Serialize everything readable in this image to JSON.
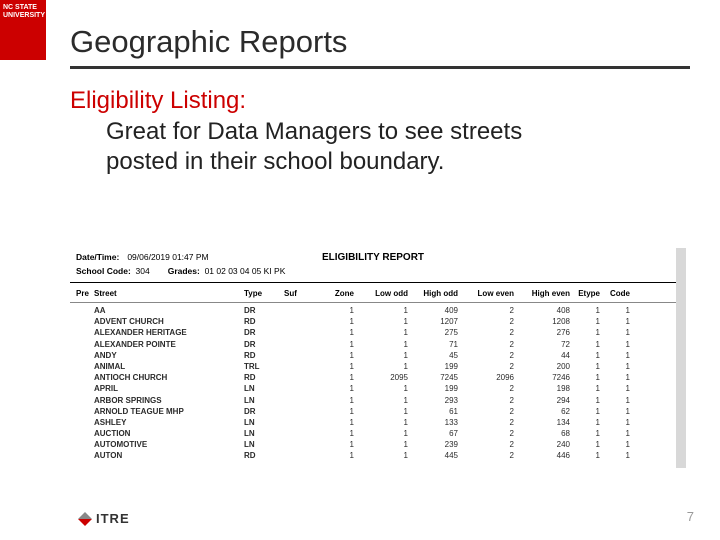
{
  "brand": {
    "line1": "NC STATE",
    "line2": "UNIVERSITY"
  },
  "title": "Geographic Reports",
  "subtitle": "Eligibility Listing:",
  "description": "Great for Data Managers to see streets posted in their school boundary.",
  "report": {
    "datetime_label": "Date/Time:",
    "datetime_value": "09/06/2019 01:47 PM",
    "title": "ELIGIBILITY REPORT",
    "school_label": "School Code:",
    "school_value": "304",
    "grades_label": "Grades:",
    "grades_value": "01 02 03 04 05 KI PK",
    "columns": [
      "Pre",
      "Street",
      "Type",
      "Suf",
      "Zone",
      "Low odd",
      "High odd",
      "Low even",
      "High even",
      "Etype",
      "Code"
    ],
    "rows": [
      {
        "pre": "",
        "street": "AA",
        "type": "DR",
        "suf": "",
        "zone": "1",
        "lo": "1",
        "ho": "409",
        "le": "2",
        "he": "408",
        "et": "1",
        "code": "1"
      },
      {
        "pre": "",
        "street": "ADVENT CHURCH",
        "type": "RD",
        "suf": "",
        "zone": "1",
        "lo": "1",
        "ho": "1207",
        "le": "2",
        "he": "1208",
        "et": "1",
        "code": "1"
      },
      {
        "pre": "",
        "street": "ALEXANDER HERITAGE",
        "type": "DR",
        "suf": "",
        "zone": "1",
        "lo": "1",
        "ho": "275",
        "le": "2",
        "he": "276",
        "et": "1",
        "code": "1"
      },
      {
        "pre": "",
        "street": "ALEXANDER POINTE",
        "type": "DR",
        "suf": "",
        "zone": "1",
        "lo": "1",
        "ho": "71",
        "le": "2",
        "he": "72",
        "et": "1",
        "code": "1"
      },
      {
        "pre": "",
        "street": "ANDY",
        "type": "RD",
        "suf": "",
        "zone": "1",
        "lo": "1",
        "ho": "45",
        "le": "2",
        "he": "44",
        "et": "1",
        "code": "1"
      },
      {
        "pre": "",
        "street": "ANIMAL",
        "type": "TRL",
        "suf": "",
        "zone": "1",
        "lo": "1",
        "ho": "199",
        "le": "2",
        "he": "200",
        "et": "1",
        "code": "1"
      },
      {
        "pre": "",
        "street": "ANTIOCH CHURCH",
        "type": "RD",
        "suf": "",
        "zone": "1",
        "lo": "2095",
        "ho": "7245",
        "le": "2096",
        "he": "7246",
        "et": "1",
        "code": "1"
      },
      {
        "pre": "",
        "street": "APRIL",
        "type": "LN",
        "suf": "",
        "zone": "1",
        "lo": "1",
        "ho": "199",
        "le": "2",
        "he": "198",
        "et": "1",
        "code": "1"
      },
      {
        "pre": "",
        "street": "ARBOR SPRINGS",
        "type": "LN",
        "suf": "",
        "zone": "1",
        "lo": "1",
        "ho": "293",
        "le": "2",
        "he": "294",
        "et": "1",
        "code": "1"
      },
      {
        "pre": "",
        "street": "ARNOLD TEAGUE MHP",
        "type": "DR",
        "suf": "",
        "zone": "1",
        "lo": "1",
        "ho": "61",
        "le": "2",
        "he": "62",
        "et": "1",
        "code": "1"
      },
      {
        "pre": "",
        "street": "ASHLEY",
        "type": "LN",
        "suf": "",
        "zone": "1",
        "lo": "1",
        "ho": "133",
        "le": "2",
        "he": "134",
        "et": "1",
        "code": "1"
      },
      {
        "pre": "",
        "street": "AUCTION",
        "type": "LN",
        "suf": "",
        "zone": "1",
        "lo": "1",
        "ho": "67",
        "le": "2",
        "he": "68",
        "et": "1",
        "code": "1"
      },
      {
        "pre": "",
        "street": "AUTOMOTIVE",
        "type": "LN",
        "suf": "",
        "zone": "1",
        "lo": "1",
        "ho": "239",
        "le": "2",
        "he": "240",
        "et": "1",
        "code": "1"
      },
      {
        "pre": "",
        "street": "AUTON",
        "type": "RD",
        "suf": "",
        "zone": "1",
        "lo": "1",
        "ho": "445",
        "le": "2",
        "he": "446",
        "et": "1",
        "code": "1"
      }
    ]
  },
  "footer": {
    "logo_text": "ITRE",
    "page_number": "7"
  },
  "style": {
    "accent_red": "#cc0000",
    "title_underline": "#333333",
    "text_color": "#222222",
    "scrollbar_color": "#e6e6e6",
    "background": "#ffffff",
    "title_fontsize": 31,
    "body_fontsize": 24,
    "table_fontsize": 8
  }
}
